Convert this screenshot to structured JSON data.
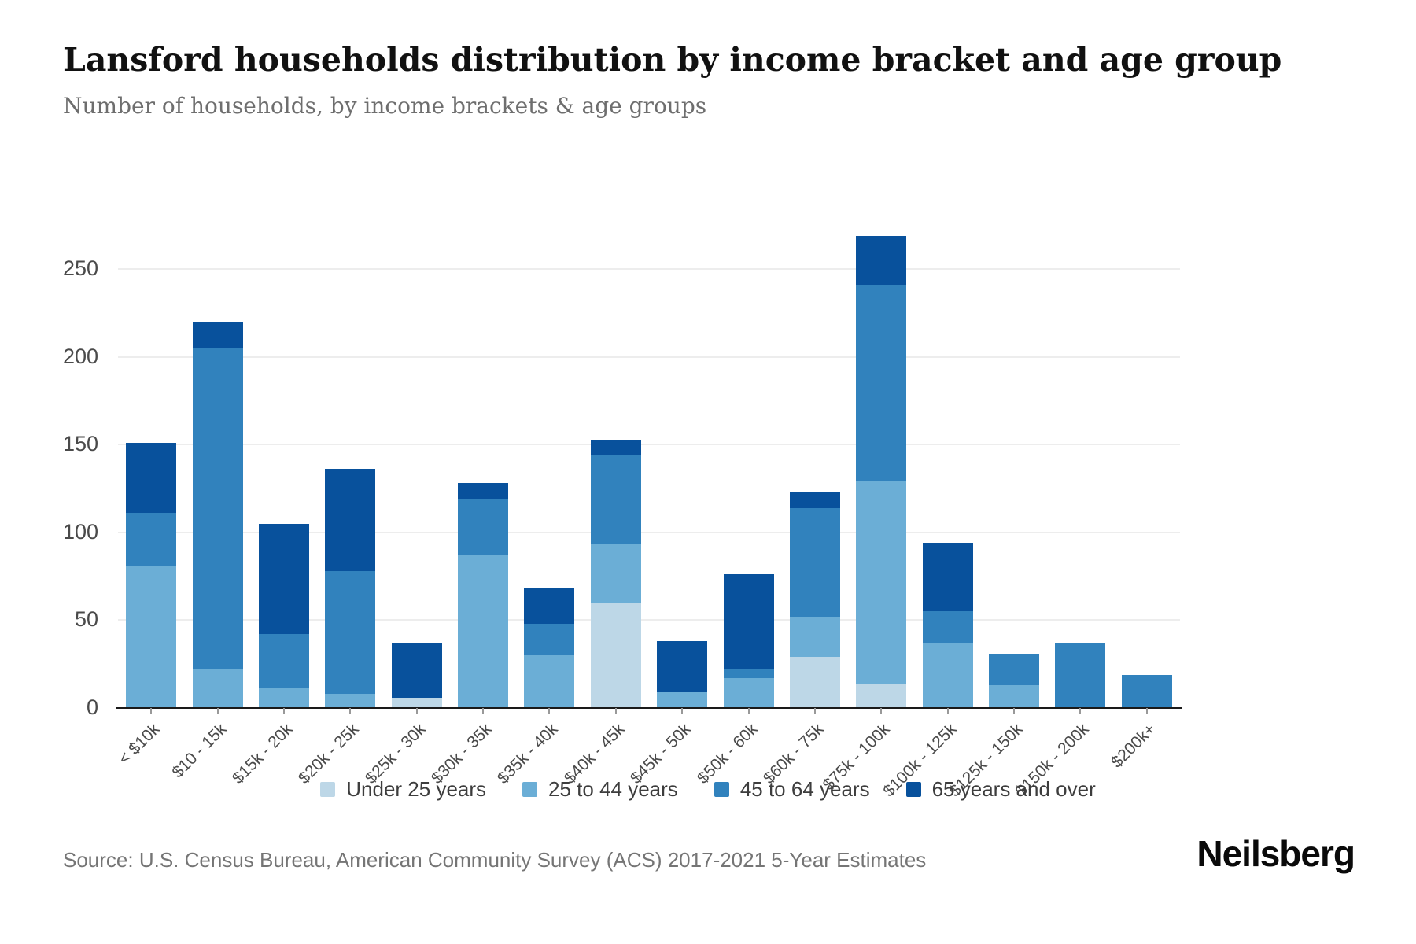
{
  "header": {
    "title": "Lansford households distribution by income bracket and age group",
    "subtitle": "Number of households, by income brackets & age groups"
  },
  "chart_data": {
    "type": "bar",
    "stacked": true,
    "title": "Lansford households distribution by income bracket and age group",
    "subtitle": "Number of households, by income brackets & age groups",
    "xlabel": "",
    "ylabel": "",
    "categories": [
      "< $10k",
      "$10 - 15k",
      "$15k - 20k",
      "$20k - 25k",
      "$25k - 30k",
      "$30k - 35k",
      "$35k - 40k",
      "$40k - 45k",
      "$45k - 50k",
      "$50k - 60k",
      "$60k - 75k",
      "$75k - 100k",
      "$100k - 125k",
      "$125k - 150k",
      "$150k - 200k",
      "$200k+"
    ],
    "series": [
      {
        "name": "Under 25 years",
        "color": "#bdd7e7",
        "values": [
          0,
          0,
          0,
          0,
          6,
          0,
          0,
          60,
          0,
          0,
          29,
          14,
          0,
          0,
          0,
          0
        ]
      },
      {
        "name": "25 to 44 years",
        "color": "#6baed6",
        "values": [
          81,
          22,
          11,
          8,
          0,
          87,
          30,
          33,
          9,
          17,
          23,
          115,
          37,
          13,
          0,
          0
        ]
      },
      {
        "name": "45 to 64 years",
        "color": "#3182bd",
        "values": [
          30,
          183,
          31,
          70,
          0,
          32,
          18,
          51,
          0,
          5,
          62,
          112,
          18,
          18,
          37,
          19
        ]
      },
      {
        "name": "65 years and over",
        "color": "#08519c",
        "values": [
          40,
          15,
          63,
          58,
          31,
          9,
          20,
          9,
          29,
          54,
          9,
          28,
          39,
          0,
          0,
          0
        ]
      }
    ],
    "totals": [
      151,
      220,
      105,
      136,
      37,
      128,
      68,
      153,
      38,
      76,
      123,
      269,
      94,
      31,
      37,
      19
    ],
    "y_ticks": [
      0,
      50,
      100,
      150,
      200,
      250
    ],
    "ylim": [
      0,
      270
    ],
    "grid": true,
    "legend_position": "bottom",
    "axis_color": "#1a1a1a",
    "gridline_color": "#ededed"
  },
  "footer": {
    "source": "Source: U.S. Census Bureau, American Community Survey (ACS) 2017-2021 5-Year Estimates",
    "brand": "Neilsberg"
  }
}
